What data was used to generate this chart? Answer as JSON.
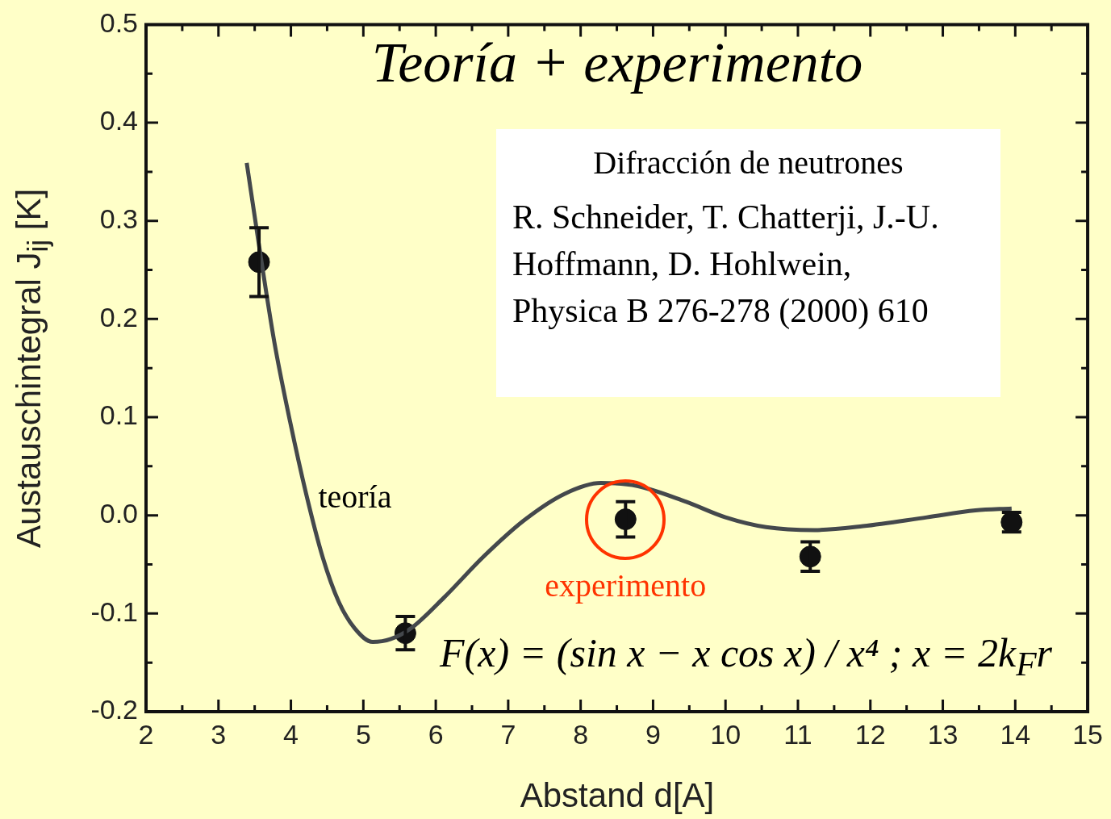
{
  "chart_data": {
    "type": "scatter",
    "title": "Teoría + experimento",
    "xlabel": "Abstand  d[A]",
    "ylabel": "Austauschintegral   J$_{ij}$ [K]",
    "xlim": [
      2,
      15
    ],
    "ylim": [
      -0.2,
      0.5
    ],
    "xticks": [
      2,
      {
        "value": 2.5,
        "label": null
      },
      3,
      {
        "value": 3.5,
        "label": null
      },
      4,
      {
        "value": 4.5,
        "label": null
      },
      5,
      {
        "value": 5.5,
        "label": null
      },
      6,
      {
        "value": 6.5,
        "label": null
      },
      7,
      {
        "value": 7.5,
        "label": null
      },
      8,
      {
        "value": 8.5,
        "label": null
      },
      9,
      {
        "value": 9.5,
        "label": null
      },
      10,
      {
        "value": 10.5,
        "label": null
      },
      11,
      {
        "value": 11.5,
        "label": null
      },
      12,
      {
        "value": 12.5,
        "label": null
      },
      13,
      {
        "value": 13.5,
        "label": null
      },
      14,
      {
        "value": 14.5,
        "label": null
      },
      15
    ],
    "yticks": [
      {
        "value": -0.2,
        "label": "-0.2"
      },
      {
        "value": -0.15,
        "label": null
      },
      {
        "value": -0.1,
        "label": "-0.1"
      },
      {
        "value": -0.05,
        "label": null
      },
      {
        "value": 0,
        "label": "0.0"
      },
      {
        "value": 0.05,
        "label": null
      },
      {
        "value": 0.1,
        "label": "0.1"
      },
      {
        "value": 0.15,
        "label": null
      },
      {
        "value": 0.2,
        "label": "0.2"
      },
      {
        "value": 0.25,
        "label": null
      },
      {
        "value": 0.3,
        "label": "0.3"
      },
      {
        "value": 0.35,
        "label": null
      },
      {
        "value": 0.4,
        "label": "0.4"
      },
      {
        "value": 0.45,
        "label": null
      },
      {
        "value": 0.5,
        "label": "0.5"
      }
    ],
    "grid": false,
    "legend": false,
    "series": [
      {
        "name": "teoría",
        "type": "line",
        "color": "#44484c",
        "marker": "none",
        "x": [
          3.39,
          3.56,
          3.77,
          3.99,
          4.21,
          4.44,
          4.66,
          4.88,
          5.13,
          5.38,
          5.66,
          6.11,
          6.66,
          7.22,
          7.78,
          8.28,
          8.78,
          9.45,
          10.0,
          10.56,
          11.23,
          11.9,
          12.78,
          13.45,
          13.95
        ],
        "values": [
          0.359,
          0.275,
          0.177,
          0.095,
          0.022,
          -0.043,
          -0.088,
          -0.115,
          -0.129,
          -0.126,
          -0.115,
          -0.084,
          -0.042,
          -0.005,
          0.022,
          0.033,
          0.03,
          0.014,
          -0.002,
          -0.012,
          -0.015,
          -0.011,
          -0.002,
          0.005,
          0.007
        ]
      },
      {
        "type": "scatter",
        "color": "#111111",
        "marker": "circle",
        "x": [
          3.56,
          5.58,
          8.62,
          11.17,
          13.95
        ],
        "values": [
          0.258,
          -0.12,
          -0.004,
          -0.042,
          -0.007
        ],
        "errors": [
          0.035,
          0.017,
          0.018,
          0.015,
          0.01
        ]
      }
    ],
    "annotations": [
      {
        "text": "experimento",
        "x": 8.62,
        "y": -0.004
      },
      "Difracción de neutrones",
      "R. Schneider, T. Chatterji, J.-U. Hoffmann, D. Hohlwein, Physica B 276-278 (2000) 610",
      "F(x) = (sin x − x cos x) / x⁴ ; x = 2k$_{F}$r"
    ]
  }
}
